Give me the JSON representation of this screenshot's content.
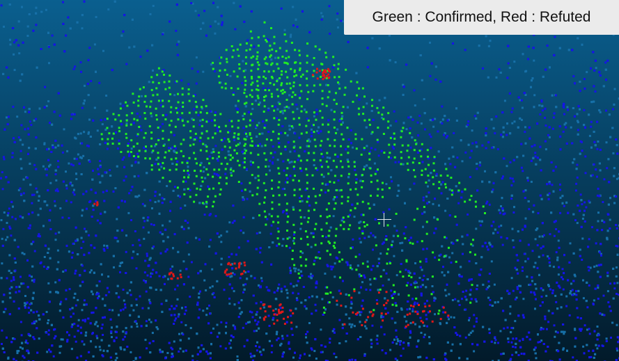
{
  "legend": {
    "text": "Green : Confirmed, Red : Refuted"
  },
  "colors": {
    "confirmed": "#22ee22",
    "refuted": "#e01818",
    "background_blue": "#1515e6",
    "background_teal": "#1770a8",
    "sky_top": "#0a5f8f",
    "sky_bottom": "#021a2a"
  },
  "cursor": {
    "icon": "crosshair-icon"
  }
}
